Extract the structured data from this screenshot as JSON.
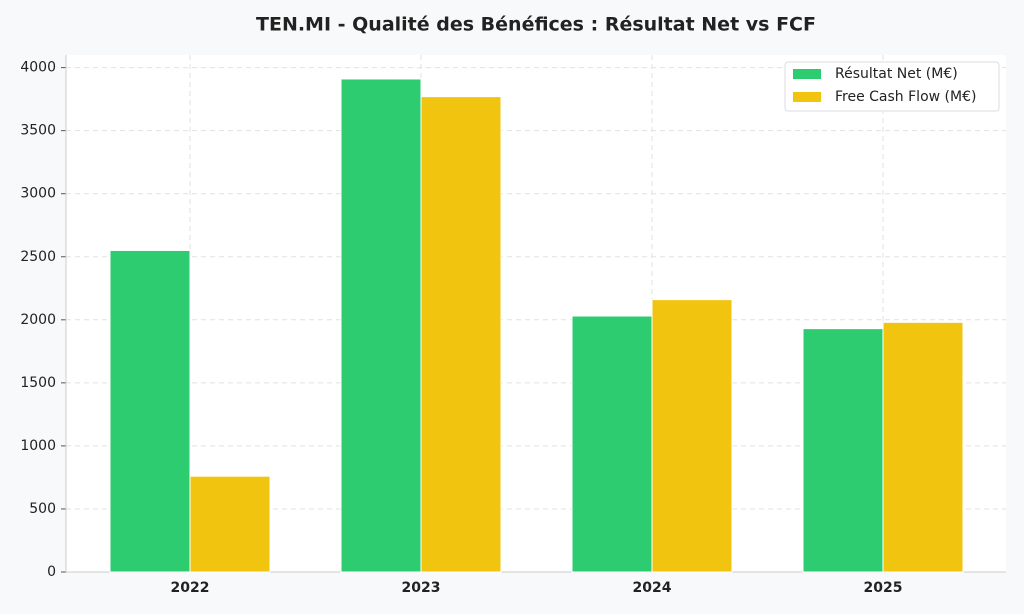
{
  "chart_data": {
    "type": "bar",
    "title": "TEN.MI - Qualité des Bénéfices : Résultat Net vs FCF",
    "categories": [
      "2022",
      "2023",
      "2024",
      "2025"
    ],
    "series": [
      {
        "name": "Résultat Net (M€)",
        "color": "#2ecc71",
        "values": [
          2550,
          3910,
          2030,
          1930
        ]
      },
      {
        "name": "Free Cash Flow (M€)",
        "color": "#f1c40f",
        "values": [
          760,
          3770,
          2160,
          1980
        ]
      }
    ],
    "ylim": [
      0,
      4100
    ],
    "yticks": [
      0,
      500,
      1000,
      1500,
      2000,
      2500,
      3000,
      3500,
      4000
    ],
    "grid": true,
    "legend": "upper-right"
  }
}
